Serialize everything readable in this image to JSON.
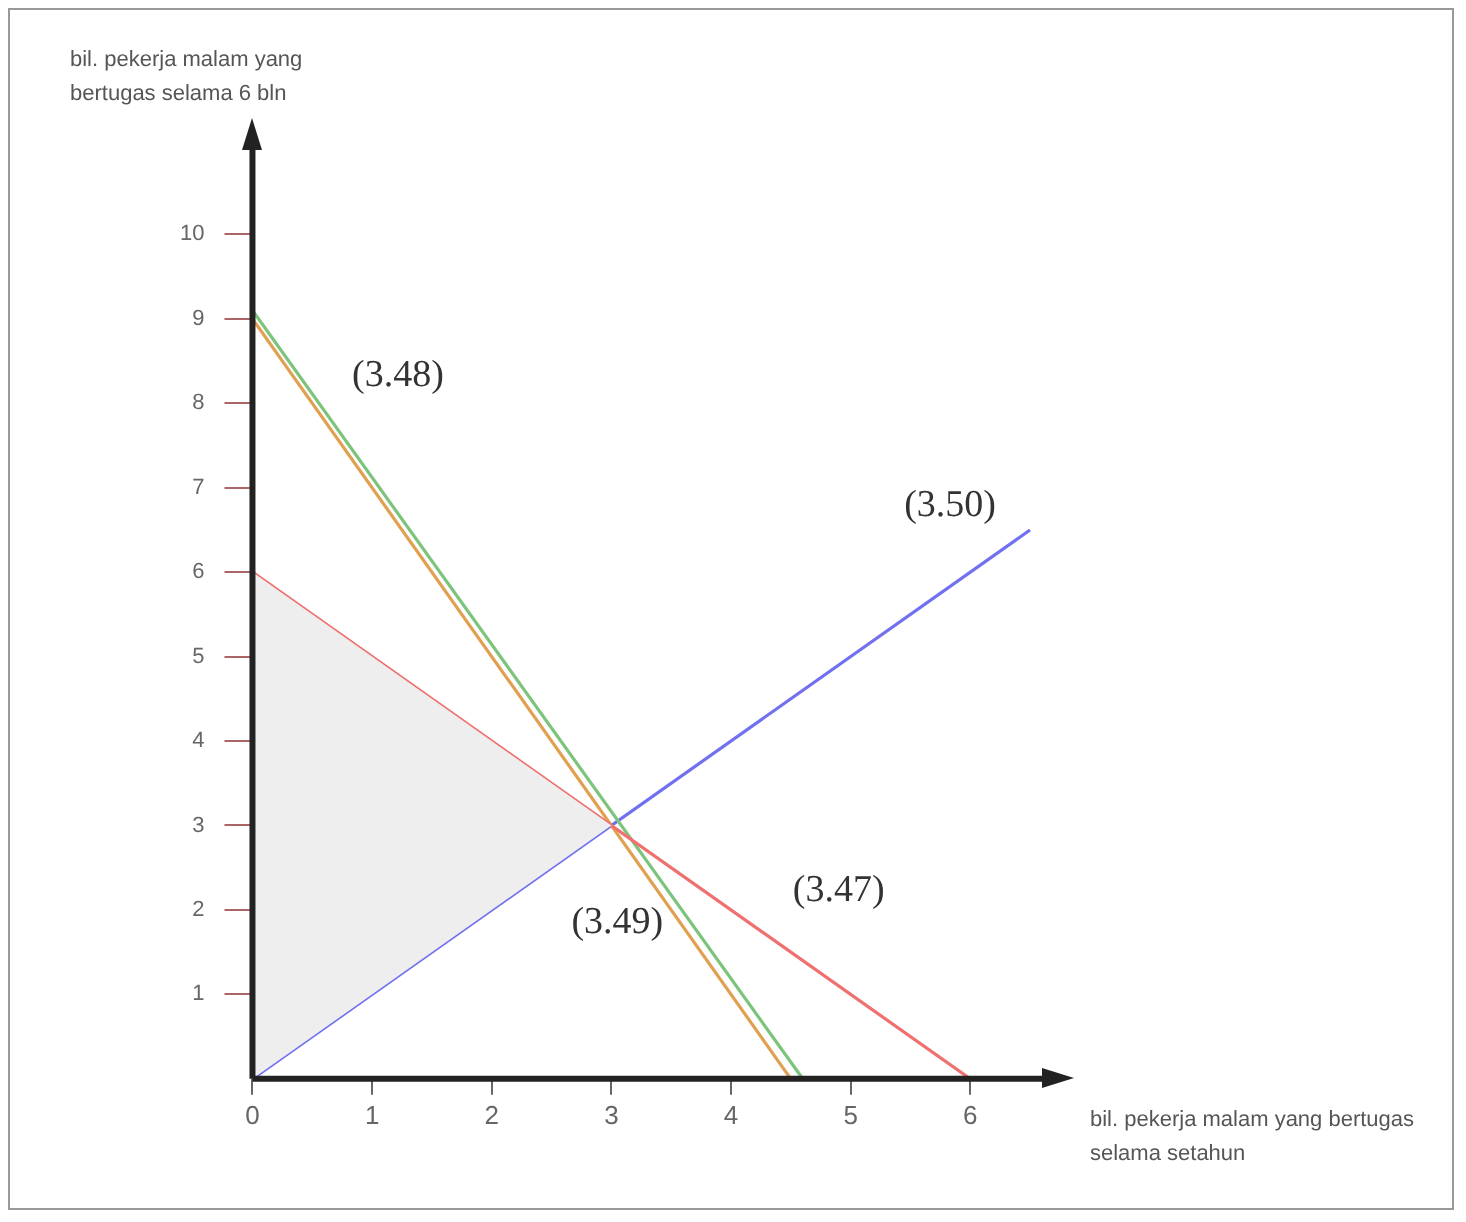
{
  "chart_data": {
    "type": "line",
    "xlabel": "bil. pekerja malam yang bertugas selama setahun",
    "ylabel": "bil. pekerja malam yang bertugas selama 6 bln",
    "xlim": [
      0,
      6.6
    ],
    "ylim": [
      0,
      11
    ],
    "xticks": [
      0,
      1,
      2,
      3,
      4,
      5,
      6
    ],
    "yticks": [
      1,
      2,
      3,
      4,
      5,
      6,
      7,
      8,
      9,
      10
    ],
    "grid": false,
    "legend": false,
    "marker": "none",
    "line_style": "solid",
    "series": [
      {
        "type": "area",
        "color": "#eeeeee",
        "x": [
          0,
          0,
          3
        ],
        "values": [
          0,
          6,
          3
        ]
      },
      {
        "name": "(3.47)",
        "color": "#f07070",
        "x": [
          0,
          6
        ],
        "values": [
          6,
          0
        ]
      },
      {
        "name": "(3.48)",
        "color": "#7cc47c",
        "x": [
          0,
          4.6
        ],
        "values": [
          9.1,
          0
        ]
      },
      {
        "name": "(3.49)",
        "color": "#e0a050",
        "x": [
          0,
          4.5
        ],
        "values": [
          9,
          0
        ]
      },
      {
        "name": "(3.50)",
        "color": "#7070f0",
        "x": [
          0,
          6.5
        ],
        "values": [
          0,
          6.5
        ]
      }
    ]
  }
}
